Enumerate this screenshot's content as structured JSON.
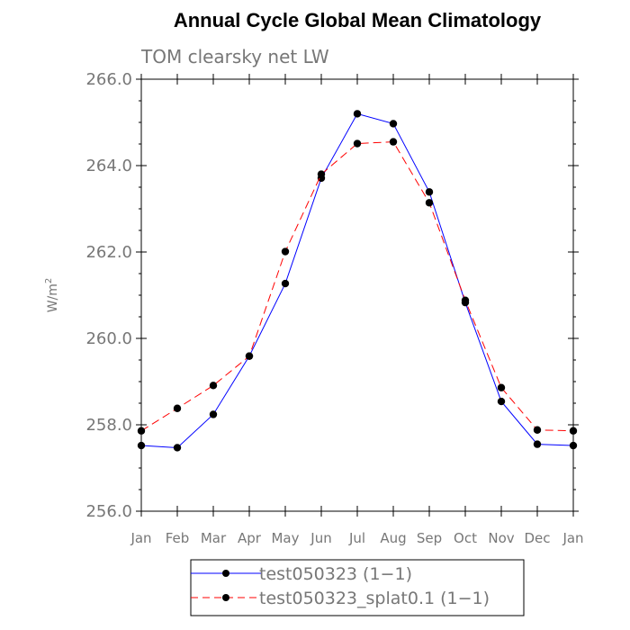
{
  "chart_data": {
    "type": "line",
    "title": "Annual Cycle Global Mean Climatology",
    "subtitle": "TOM clearsky net LW",
    "ylabel_base": "W/m",
    "ylabel_sup": "2",
    "x": [
      "Jan",
      "Feb",
      "Mar",
      "Apr",
      "May",
      "Jun",
      "Jul",
      "Aug",
      "Sep",
      "Oct",
      "Nov",
      "Dec",
      "Jan"
    ],
    "ylim": [
      256.0,
      266.0
    ],
    "yticks": [
      "256.0",
      "258.0",
      "260.0",
      "262.0",
      "264.0",
      "266.0"
    ],
    "grid": false,
    "legend_placement": "bottom",
    "series": [
      {
        "name": "test050323 (1−1)",
        "color": "#0000ff",
        "dash": "solid",
        "values": [
          257.52,
          257.47,
          258.24,
          259.59,
          261.27,
          263.71,
          265.2,
          264.97,
          263.39,
          260.83,
          258.54,
          257.55,
          257.52
        ]
      },
      {
        "name": "test050323_splat0.1 (1−1)",
        "color": "#ff0000",
        "dash": "dashed",
        "values": [
          257.86,
          258.38,
          258.91,
          259.59,
          262.01,
          263.8,
          264.51,
          264.55,
          263.14,
          260.88,
          258.86,
          257.88,
          257.86
        ]
      }
    ]
  }
}
